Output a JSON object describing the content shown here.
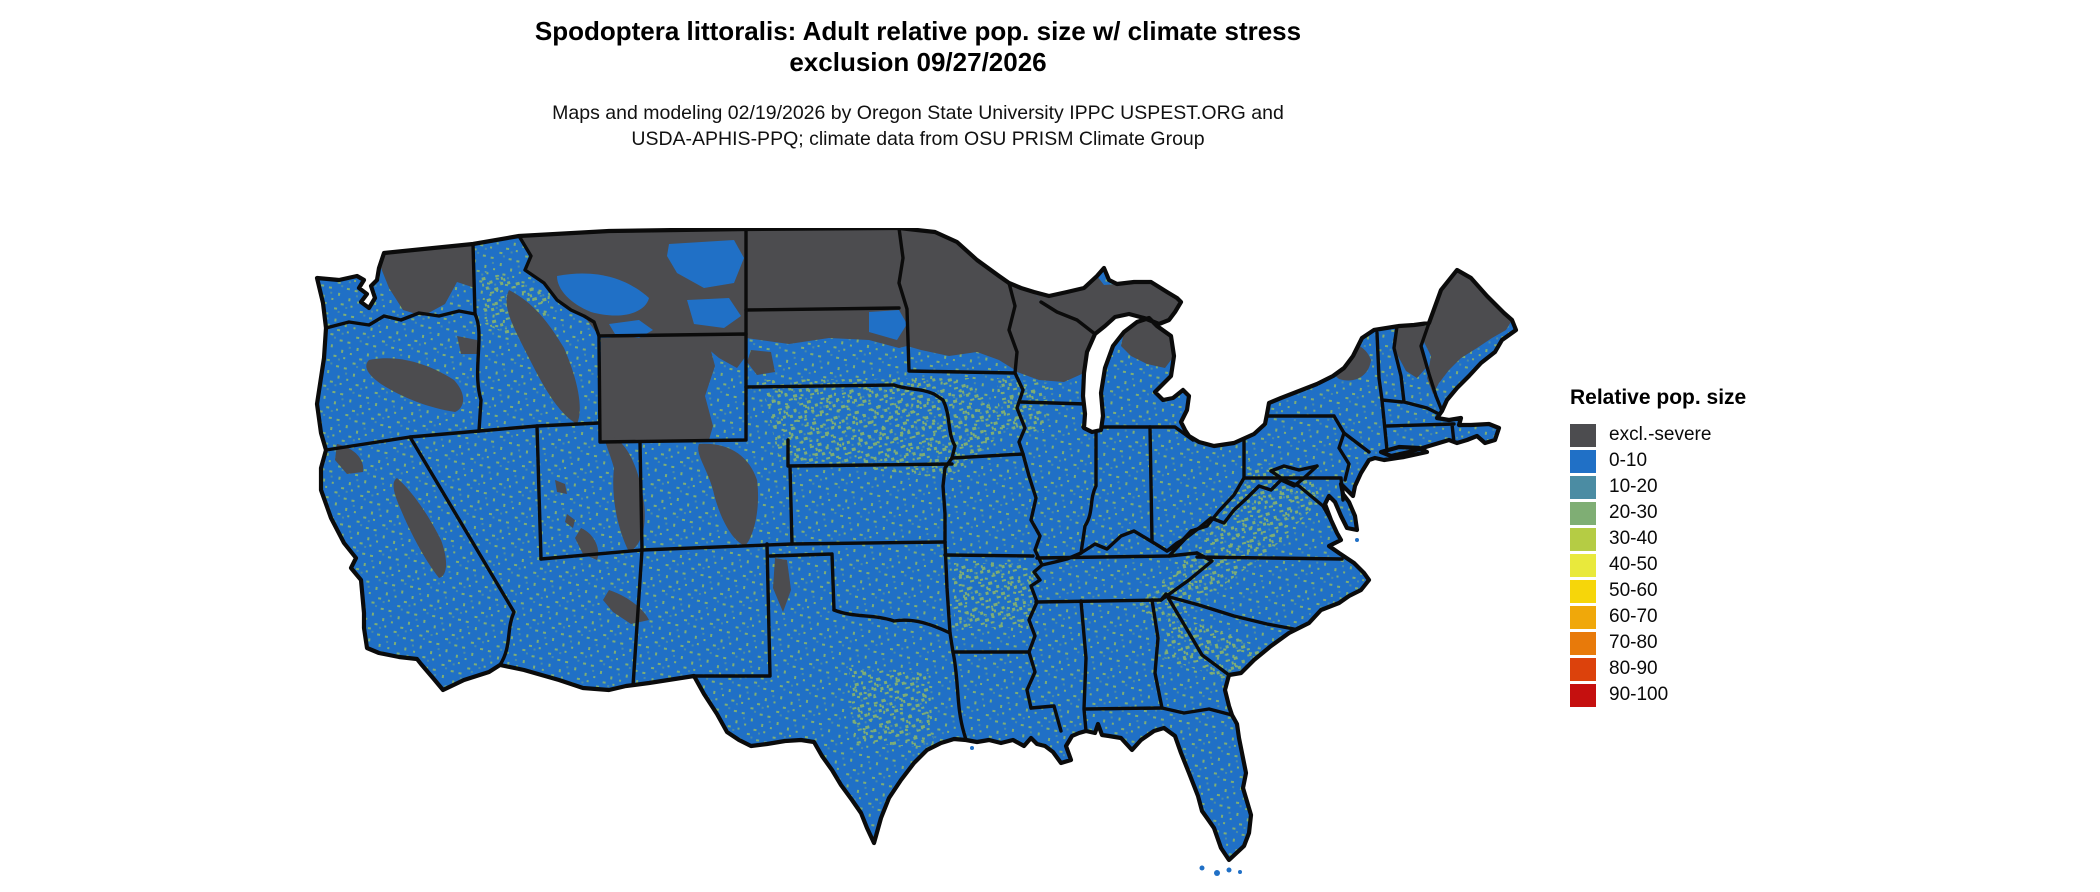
{
  "header": {
    "title_line1": "Spodoptera littoralis: Adult relative pop. size w/ climate stress",
    "title_line2": "exclusion 09/27/2026",
    "subtitle_line1": "Maps and modeling 02/19/2026 by Oregon State University IPPC USPEST.ORG and",
    "subtitle_line2": "USDA-APHIS-PPQ; climate data from OSU PRISM Climate Group"
  },
  "legend": {
    "title": "Relative pop. size",
    "items": [
      {
        "label": "excl.-severe",
        "color": "#4c4c4f"
      },
      {
        "label": "0-10",
        "color": "#2070c6"
      },
      {
        "label": "10-20",
        "color": "#4b8ca3"
      },
      {
        "label": "20-30",
        "color": "#7fae74"
      },
      {
        "label": "30-40",
        "color": "#b5cc44"
      },
      {
        "label": "40-50",
        "color": "#e9e93c"
      },
      {
        "label": "50-60",
        "color": "#f6d60a"
      },
      {
        "label": "60-70",
        "color": "#f0a80a"
      },
      {
        "label": "70-80",
        "color": "#e87a0a"
      },
      {
        "label": "80-90",
        "color": "#dc420c"
      },
      {
        "label": "90-100",
        "color": "#c5100f"
      }
    ]
  },
  "map": {
    "region": "Contiguous United States",
    "land_color": "#2070c6",
    "speckle_green": "#7fae74",
    "speckle_teal": "#4b8ca3",
    "exclusion_color": "#4c4c4f",
    "border_color": "#0b0b0b",
    "water_color": "#ffffff"
  }
}
